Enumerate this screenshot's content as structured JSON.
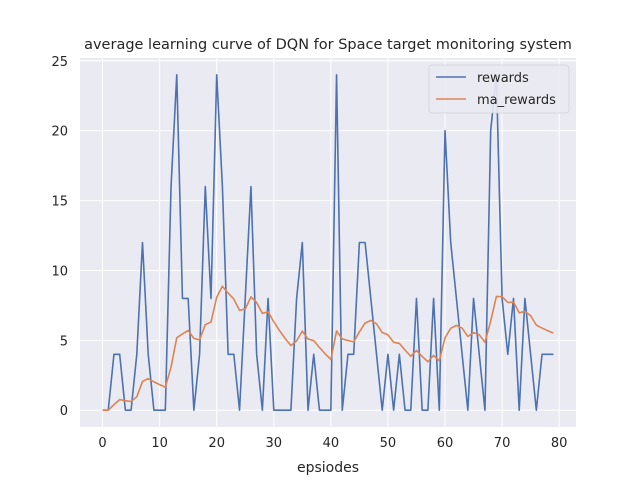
{
  "chart_data": {
    "type": "line",
    "title": "average learning curve of DQN for Space target monitoring system",
    "xlabel": "epsiodes",
    "ylabel": "",
    "xlim": [
      -3.95,
      82.95
    ],
    "ylim": [
      -1.2,
      25.2
    ],
    "x_ticks": [
      0,
      10,
      20,
      30,
      40,
      50,
      60,
      70,
      80
    ],
    "y_ticks": [
      0,
      5,
      10,
      15,
      20,
      25
    ],
    "grid": true,
    "legend_position": "top-right",
    "colors": {
      "rewards": "#4c72b0",
      "ma_rewards": "#dd8452",
      "background": "#eaeaf2",
      "grid": "#ffffff"
    },
    "x": [
      0,
      1,
      2,
      3,
      4,
      5,
      6,
      7,
      8,
      9,
      10,
      11,
      12,
      13,
      14,
      15,
      16,
      17,
      18,
      19,
      20,
      21,
      22,
      23,
      24,
      25,
      26,
      27,
      28,
      29,
      30,
      31,
      32,
      33,
      34,
      35,
      36,
      37,
      38,
      39,
      40,
      41,
      42,
      43,
      44,
      45,
      46,
      47,
      48,
      49,
      50,
      51,
      52,
      53,
      54,
      55,
      56,
      57,
      58,
      59,
      60,
      61,
      62,
      63,
      64,
      65,
      66,
      67,
      68,
      69,
      70,
      71,
      72,
      73,
      74,
      75,
      76,
      77,
      78,
      79
    ],
    "series": [
      {
        "name": "rewards",
        "values": [
          0,
          0,
          4,
          4,
          0,
          0,
          4,
          12,
          4,
          0,
          0,
          0,
          16,
          24,
          8,
          8,
          0,
          4,
          16,
          8,
          24,
          16,
          4,
          4,
          0,
          8,
          16,
          4,
          0,
          8,
          0,
          0,
          0,
          0,
          8,
          12,
          0,
          4,
          0,
          0,
          0,
          24,
          0,
          4,
          4,
          12,
          12,
          8,
          4,
          0,
          4,
          0,
          4,
          0,
          0,
          8,
          0,
          0,
          8,
          0,
          20,
          12,
          8,
          4,
          0,
          8,
          4,
          0,
          20,
          24,
          8,
          4,
          8,
          0,
          8,
          4,
          0,
          4,
          4,
          4
        ]
      },
      {
        "name": "ma_rewards",
        "values": [
          0,
          0,
          0.4,
          0.76,
          0.68,
          0.62,
          0.96,
          2.06,
          2.26,
          2.03,
          1.83,
          1.65,
          3.08,
          5.18,
          5.46,
          5.71,
          5.14,
          5.03,
          6.12,
          6.31,
          8.08,
          8.87,
          8.38,
          7.95,
          7.15,
          7.24,
          8.11,
          7.7,
          6.93,
          7.04,
          6.33,
          5.7,
          5.13,
          4.62,
          4.96,
          5.66,
          5.09,
          4.98,
          4.49,
          4.04,
          3.63,
          5.67,
          5.1,
          4.99,
          4.89,
          5.6,
          6.24,
          6.42,
          6.18,
          5.56,
          5.4,
          4.86,
          4.78,
          4.3,
          3.87,
          4.28,
          3.85,
          3.47,
          3.92,
          3.53,
          5.18,
          5.86,
          6.07,
          5.87,
          5.28,
          5.55,
          5.4,
          4.86,
          6.37,
          8.14,
          8.12,
          7.71,
          7.74,
          6.97,
          7.07,
          6.77,
          6.09,
          5.88,
          5.69,
          5.52
        ]
      }
    ]
  }
}
